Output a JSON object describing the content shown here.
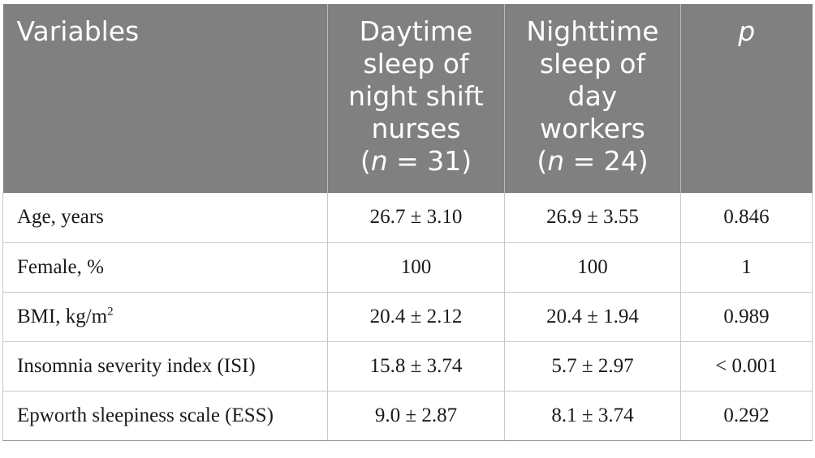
{
  "table": {
    "headers": {
      "variables": "Variables",
      "col1": [
        "Daytime",
        "sleep of",
        "night shift",
        "nurses"
      ],
      "col1_n_prefix": "(",
      "col1_n_var": "n",
      "col1_n_suffix": " = 31)",
      "col2": [
        "Nighttime",
        "sleep of",
        "day",
        "workers"
      ],
      "col2_n_prefix": "(",
      "col2_n_var": "n",
      "col2_n_suffix": " = 24)",
      "p": "p"
    },
    "rows": [
      {
        "variable": "Age, years",
        "sup": "",
        "day": "26.7 ± 3.10",
        "night": "26.9 ± 3.55",
        "p": "0.846"
      },
      {
        "variable": "Female, %",
        "sup": "",
        "day": "100",
        "night": "100",
        "p": "1"
      },
      {
        "variable": "BMI, kg/m",
        "sup": "2",
        "day": "20.4 ± 2.12",
        "night": "20.4 ± 1.94",
        "p": "0.989"
      },
      {
        "variable": "Insomnia severity index (ISI)",
        "sup": "",
        "day": "15.8 ± 3.74",
        "night": "5.7 ± 2.97",
        "p": "< 0.001"
      },
      {
        "variable": "Epworth sleepiness scale (ESS)",
        "sup": "",
        "day": "9.0 ± 2.87",
        "night": "8.1 ± 3.74",
        "p": "0.292"
      }
    ]
  }
}
